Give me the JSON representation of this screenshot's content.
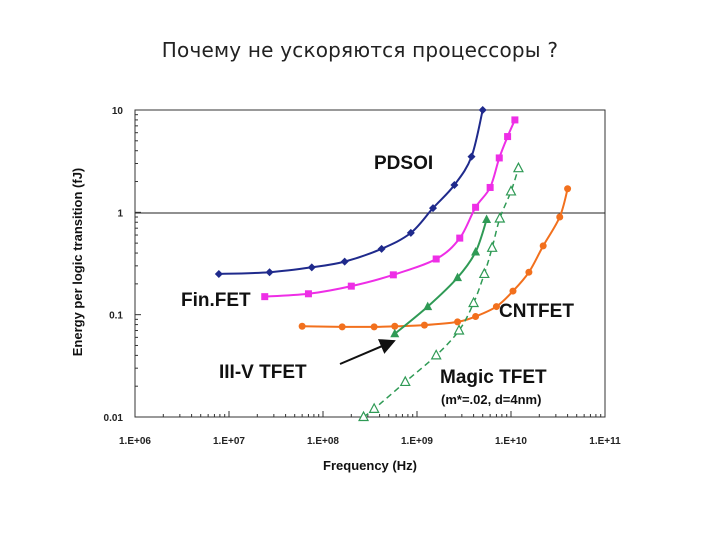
{
  "slide": {
    "title": "Почему не ускоряются процессоры ?"
  },
  "chart_data": {
    "type": "line",
    "xlabel": "Frequency (Hz)",
    "ylabel": "Energy per logic transition (fJ)",
    "x_scale": "log",
    "y_scale": "log",
    "xlim": [
      1000000,
      100000000000
    ],
    "ylim": [
      0.01,
      10
    ],
    "x_ticks": [
      "1.E+06",
      "1.E+07",
      "1.E+08",
      "1.E+09",
      "1.E+10",
      "1.E+11"
    ],
    "y_ticks": [
      "0.01",
      "0.1",
      "1",
      "10"
    ],
    "reference_line_y": 1,
    "grid": false,
    "series": [
      {
        "name": "PDSOI",
        "color": "#1f2a8c",
        "marker": "diamond",
        "dashed": false,
        "x": [
          7800000.0,
          27000000.0,
          76000000.0,
          170000000.0,
          420000000.0,
          860000000.0,
          1480000000.0,
          2500000000.0,
          3800000000.0,
          5000000000.0
        ],
        "y": [
          0.25,
          0.26,
          0.29,
          0.33,
          0.44,
          0.63,
          1.1,
          1.85,
          3.5,
          10
        ]
      },
      {
        "name": "Fin.FET",
        "color": "#ee2ee6",
        "marker": "square",
        "dashed": false,
        "x": [
          24000000.0,
          70000000.0,
          200000000.0,
          560000000.0,
          1600000000.0,
          2850000000.0,
          4200000000.0,
          6000000000.0,
          7500000000.0,
          9200000000.0,
          11000000000.0
        ],
        "y": [
          0.15,
          0.16,
          0.19,
          0.245,
          0.35,
          0.56,
          1.12,
          1.75,
          3.4,
          5.5,
          8.0
        ]
      },
      {
        "name": "CNTFET",
        "color": "#f2701d",
        "marker": "circle",
        "dashed": false,
        "x": [
          60000000.0,
          160000000.0,
          350000000.0,
          580000000.0,
          1200000000.0,
          2700000000.0,
          4200000000.0,
          7000000000.0,
          10500000000.0,
          15500000000.0,
          22000000000.0,
          33000000000.0,
          40000000000.0
        ],
        "y": [
          0.077,
          0.076,
          0.076,
          0.077,
          0.079,
          0.085,
          0.096,
          0.12,
          0.17,
          0.26,
          0.47,
          0.9,
          1.7
        ]
      },
      {
        "name": "III-V TFET",
        "color": "#2f9a55",
        "marker": "triangle",
        "dashed": false,
        "x": [
          580000000.0,
          1300000000.0,
          2700000000.0,
          4200000000.0,
          5500000000.0
        ],
        "y": [
          0.065,
          0.12,
          0.23,
          0.41,
          0.85
        ]
      },
      {
        "name": "Magic TFET",
        "color": "#2f9a55",
        "marker": "triangle-open",
        "dashed": true,
        "x": [
          270000000.0,
          350000000.0,
          750000000.0,
          1600000000.0,
          2800000000.0,
          4000000000.0,
          5200000000.0,
          6300000000.0,
          7600000000.0,
          10000000000.0,
          12000000000.0
        ],
        "y": [
          0.01,
          0.012,
          0.022,
          0.04,
          0.07,
          0.13,
          0.25,
          0.45,
          0.87,
          1.6,
          2.7
        ]
      }
    ],
    "annotations": [
      {
        "text": "PDSOI",
        "series": "PDSOI"
      },
      {
        "text": "Fin.FET",
        "series": "Fin.FET"
      },
      {
        "text": "CNTFET",
        "series": "CNTFET"
      },
      {
        "text": "III-V TFET",
        "series": "III-V TFET",
        "arrow": true
      },
      {
        "text": "Magic TFET",
        "series": "Magic TFET"
      },
      {
        "text": "(m*=.02, d=4nm)",
        "series": "Magic TFET"
      }
    ]
  }
}
